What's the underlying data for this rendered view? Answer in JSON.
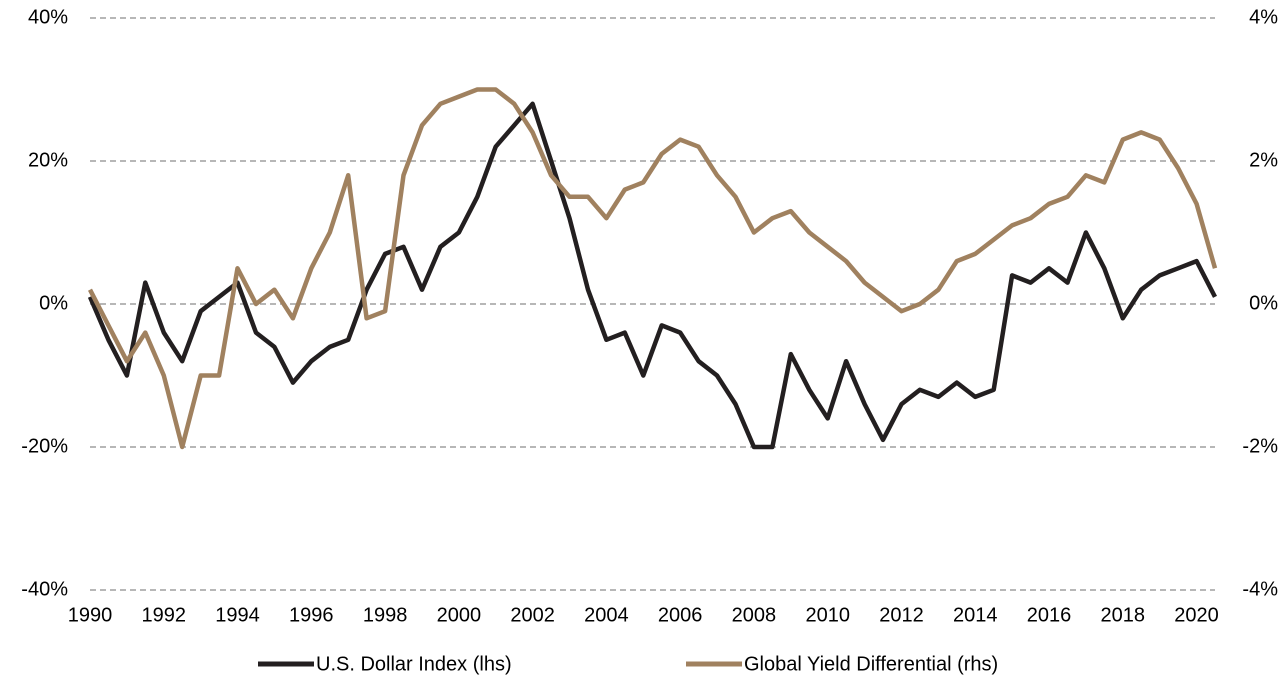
{
  "chart_data": {
    "type": "line",
    "x": [
      1990,
      1990.5,
      1991,
      1991.5,
      1992,
      1992.5,
      1993,
      1993.5,
      1994,
      1994.5,
      1995,
      1995.5,
      1996,
      1996.5,
      1997,
      1997.5,
      1998,
      1998.5,
      1999,
      1999.5,
      2000,
      2000.5,
      2001,
      2001.5,
      2002,
      2002.5,
      2003,
      2003.5,
      2004,
      2004.5,
      2005,
      2005.5,
      2006,
      2006.5,
      2007,
      2007.5,
      2008,
      2008.5,
      2009,
      2009.5,
      2010,
      2010.5,
      2011,
      2011.5,
      2012,
      2012.5,
      2013,
      2013.5,
      2014,
      2014.5,
      2015,
      2015.5,
      2016,
      2016.5,
      2017,
      2017.5,
      2018,
      2018.5,
      2019,
      2019.5,
      2020,
      2020.5
    ],
    "series": [
      {
        "name": "U.S. Dollar Index (lhs)",
        "color": "#231f20",
        "values": [
          1,
          -5,
          -10,
          3,
          -4,
          -8,
          -1,
          1,
          3,
          -4,
          -6,
          -11,
          -8,
          -6,
          -5,
          2,
          7,
          8,
          2,
          8,
          10,
          15,
          22,
          25,
          28,
          20,
          12,
          2,
          -5,
          -4,
          -10,
          -3,
          -4,
          -8,
          -10,
          -14,
          -20,
          -20,
          -7,
          -12,
          -16,
          -8,
          -14,
          -19,
          -14,
          -12,
          -13,
          -11,
          -13,
          -12,
          4,
          3,
          5,
          3,
          10,
          5,
          -2,
          2,
          4,
          5,
          6,
          1
        ]
      },
      {
        "name": "Global Yield Differential (rhs)",
        "color": "#a0815f",
        "axis": "y2",
        "values": [
          0.2,
          -0.3,
          -0.8,
          -0.4,
          -1.0,
          -2.0,
          -1.0,
          -1.0,
          0.5,
          0.0,
          0.2,
          -0.2,
          0.5,
          1.0,
          1.8,
          -0.2,
          -0.1,
          1.8,
          2.5,
          2.8,
          2.9,
          3.0,
          3.0,
          2.8,
          2.4,
          1.8,
          1.5,
          1.5,
          1.2,
          1.6,
          1.7,
          2.1,
          2.3,
          2.2,
          1.8,
          1.5,
          1.0,
          1.2,
          1.3,
          1.0,
          0.8,
          0.6,
          0.3,
          0.1,
          -0.1,
          0.0,
          0.2,
          0.6,
          0.7,
          0.9,
          1.1,
          1.2,
          1.4,
          1.5,
          1.8,
          1.7,
          2.3,
          2.4,
          2.3,
          1.9,
          1.4,
          0.5
        ]
      }
    ],
    "xlim": [
      1990,
      2020.5
    ],
    "xticks": [
      1990,
      1992,
      1994,
      1996,
      1998,
      2000,
      2002,
      2004,
      2006,
      2008,
      2010,
      2012,
      2014,
      2016,
      2018,
      2020
    ],
    "ylim": [
      -40,
      40
    ],
    "yticks": [
      {
        "value": -40,
        "label": "-40%"
      },
      {
        "value": -20,
        "label": "-20%"
      },
      {
        "value": 0,
        "label": "0%"
      },
      {
        "value": 20,
        "label": "20%"
      },
      {
        "value": 40,
        "label": "40%"
      }
    ],
    "y2lim": [
      -4,
      4
    ],
    "y2ticks": [
      {
        "value": -4,
        "label": "-4%"
      },
      {
        "value": -2,
        "label": "-2%"
      },
      {
        "value": 0,
        "label": "0%"
      },
      {
        "value": 2,
        "label": "2%"
      },
      {
        "value": 4,
        "label": "4%"
      }
    ],
    "grid": true,
    "legend": "bottom"
  }
}
